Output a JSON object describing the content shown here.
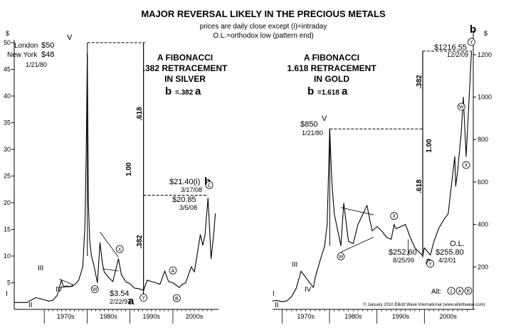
{
  "title": "MAJOR REVERSAL LIKELY IN THE PRECIOUS METALS",
  "subtitle_lines": [
    "prices are daily close except (i)=intraday",
    "O.L.=orthodox low (pattern end)"
  ],
  "copyright": "© January 2010 Elliott Wave International (www.elliottwave.com)",
  "alt_label": "Alt:",
  "alt_marks": [
    "1",
    "A",
    "B"
  ],
  "chart_data": [
    {
      "type": "line",
      "name": "silver",
      "ylabel": "$",
      "ylim": [
        0,
        50
      ],
      "y_ticks": [
        5,
        10,
        15,
        20,
        25,
        30,
        35,
        40,
        45,
        50
      ],
      "x_labels": [
        "1970s",
        "1980s",
        "1990s",
        "2000s"
      ],
      "heading": [
        "A FIBONACCI",
        ".382 RETRACEMENT",
        "IN SILVER"
      ],
      "formula": {
        "b": "b",
        "eq": "=.382",
        "a": "a"
      },
      "ratios": {
        "upper": ".618",
        "mid": "1.00",
        "lower": ".382"
      },
      "labels": {
        "v": "V",
        "london": "London",
        "london_price": "$50",
        "ny": "New York",
        "ny_price": "$48",
        "peak_date": "1/21/80",
        "low_price": "$3.54",
        "low_date": "2/22/93",
        "a": "a",
        "b_price": "$21.40(i)",
        "b": "b",
        "b_date": "3/17/08",
        "b_close": "$20.85",
        "b_close_date": "3/5/08",
        "w1": "I",
        "w2": "II",
        "w3": "III",
        "w4": "IV"
      },
      "circled": [
        "W",
        "X",
        "Y",
        "A",
        "B",
        "C"
      ],
      "x": [
        1963,
        1966,
        1968,
        1970,
        1971,
        1972,
        1973,
        1974,
        1974.5,
        1975,
        1976,
        1977,
        1978,
        1979,
        1979.5,
        1979.8,
        1980.05,
        1980.3,
        1980.6,
        1981,
        1981.5,
        1982.4,
        1983,
        1983.6,
        1984,
        1985,
        1986,
        1987.3,
        1988,
        1989,
        1990,
        1991,
        1992,
        1993.15,
        1994,
        1995,
        1996,
        1997,
        1998.1,
        1999,
        2000,
        2001.5,
        2002,
        2003,
        2004.3,
        2005,
        2006.4,
        2007,
        2007.5,
        2008.2,
        2008.9,
        2009.5,
        2009.9
      ],
      "y": [
        1.3,
        1.29,
        2.2,
        1.8,
        1.55,
        1.7,
        2.6,
        5.5,
        4.2,
        4.4,
        4.3,
        4.6,
        5.4,
        8,
        16,
        30,
        48,
        20,
        13,
        10,
        8.5,
        5,
        12.5,
        8.5,
        7,
        6,
        5.2,
        9.5,
        6.5,
        5.2,
        4.8,
        4,
        3.9,
        3.54,
        5.5,
        5.2,
        5,
        4.7,
        7.2,
        5.2,
        5,
        4.1,
        4.6,
        5,
        8,
        7,
        14,
        12,
        14,
        20.85,
        9.5,
        14,
        18
      ]
    },
    {
      "type": "line",
      "name": "gold",
      "ylabel": "$",
      "ylim": [
        0,
        1300
      ],
      "y_ticks": [
        200,
        400,
        600,
        800,
        1000,
        1200
      ],
      "x_labels": [
        "1970s",
        "1980s",
        "1990s",
        "2000s"
      ],
      "heading": [
        "A FIBONACCI",
        "1.618 RETRACEMENT",
        "IN GOLD"
      ],
      "formula": {
        "b": "b",
        "eq": "=1.618",
        "a": "a"
      },
      "ratios": {
        "upper": ".382",
        "mid": "1.00",
        "lower": ".618"
      },
      "labels": {
        "v": "V",
        "peak_price": "$850",
        "peak_date": "1/21/80",
        "low1_price": "$252.60",
        "low1_date": "8/25/99",
        "low2_price": "$255.80",
        "low2_date": "4/2/01",
        "ol": "O.L.",
        "a": "a",
        "b": "b",
        "b_price": "$1216.55",
        "b_date": "12/2/09",
        "w1": "I",
        "w2": "II",
        "w3": "III",
        "w4": "IV"
      },
      "circled": [
        "W",
        "X",
        "Y",
        "X",
        "W",
        "Y"
      ],
      "x": [
        1968,
        1969,
        1970,
        1971,
        1972,
        1973,
        1974,
        1975,
        1976.6,
        1977,
        1978,
        1979,
        1979.5,
        1980.05,
        1980.5,
        1981,
        1982.4,
        1983,
        1984,
        1985,
        1986,
        1987.9,
        1988.5,
        1989,
        1990,
        1991,
        1992,
        1993,
        1993.6,
        1994,
        1995,
        1996,
        1997,
        1998,
        1999.65,
        2000,
        2001.25,
        2002,
        2003,
        2004,
        2005,
        2006.4,
        2006.6,
        2007,
        2007.8,
        2008.2,
        2008.8,
        2009.2,
        2009.92
      ],
      "y": [
        40,
        42,
        36,
        40,
        60,
        100,
        180,
        150,
        103,
        150,
        230,
        300,
        400,
        850,
        600,
        450,
        300,
        500,
        320,
        310,
        400,
        490,
        420,
        370,
        390,
        370,
        340,
        330,
        400,
        380,
        390,
        400,
        340,
        290,
        252.6,
        290,
        255.8,
        320,
        380,
        420,
        450,
        720,
        580,
        650,
        840,
        1000,
        720,
        900,
        1216.55
      ]
    }
  ]
}
